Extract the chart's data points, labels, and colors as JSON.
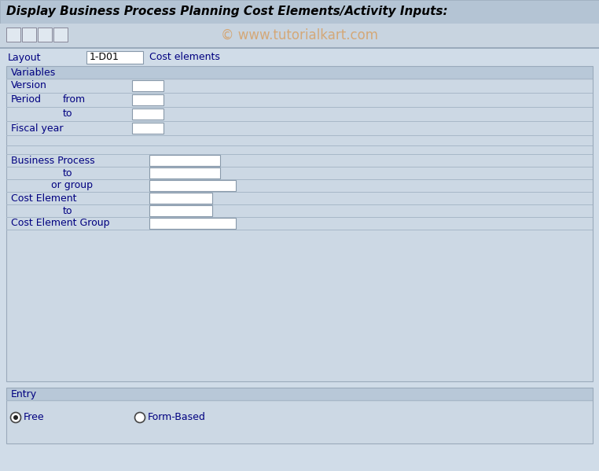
{
  "title": "Display Business Process Planning Cost Elements/Activity Inputs:",
  "watermark": "© www.tutorialkart.com",
  "bg_outer": "#c0ccd8",
  "bg_main": "#ccd8e4",
  "bg_content": "#d0dce8",
  "title_bar_bg": "#b8c8d8",
  "toolbar_bg": "#c8d4e0",
  "section_hdr_bg": "#b8c8d8",
  "input_bg": "#ffffff",
  "label_color": "#000080",
  "title_color": "#000000",
  "watermark_color": "#d4a878",
  "title_text": "Display Business Process Planning Cost Elements/Activity Inputs:",
  "layout_label": "Layout",
  "layout_value": "1-D01",
  "layout_desc": "Cost elements",
  "variables_label": "Variables",
  "entry_label": "Entry"
}
